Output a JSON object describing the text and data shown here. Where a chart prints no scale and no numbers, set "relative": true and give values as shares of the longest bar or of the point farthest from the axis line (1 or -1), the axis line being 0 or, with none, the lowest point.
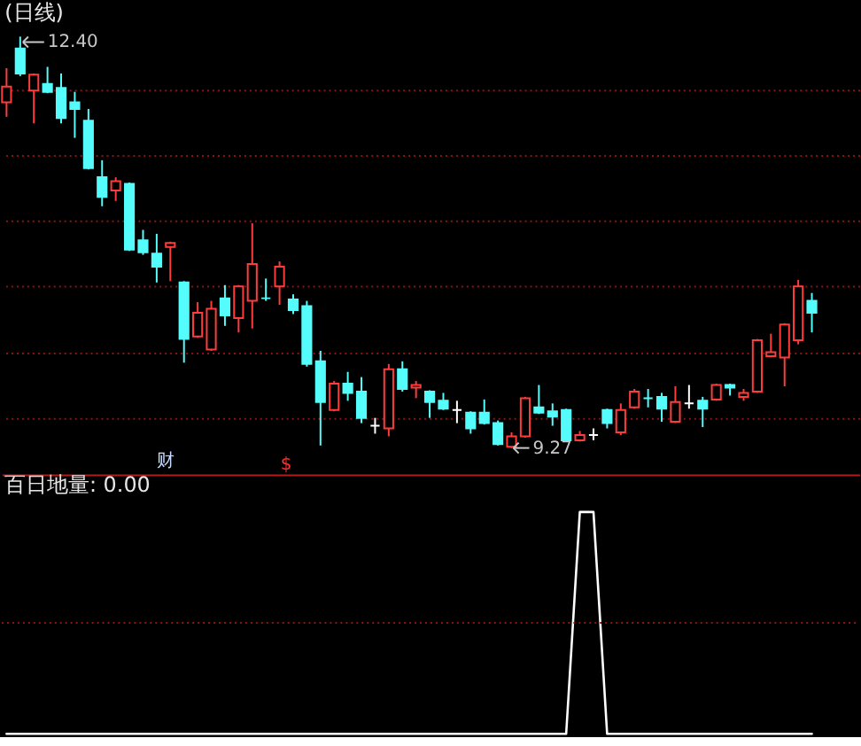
{
  "chart_data": [
    {
      "type": "candlestick",
      "title": "(日线)",
      "categories": [
        null,
        null,
        null,
        null,
        null,
        null,
        null,
        null,
        null,
        null,
        null,
        null,
        null,
        null,
        null,
        null,
        null,
        null,
        null,
        null,
        null,
        null,
        null,
        null,
        null,
        null,
        null,
        null,
        null,
        null,
        null,
        null,
        null,
        null,
        null,
        null,
        null,
        null,
        null,
        null,
        null,
        null,
        null,
        null,
        null,
        null,
        null,
        null,
        null,
        null,
        null,
        null,
        null,
        null,
        null,
        null,
        null,
        null,
        null,
        null
      ],
      "ohlc": [
        [
          11.9,
          12.16,
          11.79,
          12.02
        ],
        [
          12.31,
          12.4,
          12.1,
          12.12
        ],
        [
          11.99,
          12.12,
          11.74,
          12.11
        ],
        [
          12.04,
          12.17,
          11.97,
          11.98
        ],
        [
          12.01,
          12.12,
          11.74,
          11.78
        ],
        [
          11.9,
          11.98,
          11.63,
          11.85
        ],
        [
          11.76,
          11.85,
          11.39,
          11.4
        ],
        [
          11.33,
          11.46,
          11.11,
          11.18
        ],
        [
          11.23,
          11.33,
          11.15,
          11.3
        ],
        [
          11.28,
          11.29,
          10.77,
          10.78
        ],
        [
          10.85,
          10.93,
          10.74,
          10.76
        ],
        [
          10.75,
          10.9,
          10.53,
          10.65
        ],
        [
          10.8,
          10.84,
          10.54,
          10.83
        ],
        [
          10.53,
          10.54,
          9.92,
          10.1
        ],
        [
          10.12,
          10.38,
          10.11,
          10.3
        ],
        [
          10.02,
          10.39,
          10.01,
          10.33
        ],
        [
          10.41,
          10.51,
          10.2,
          10.28
        ],
        [
          10.26,
          10.51,
          10.15,
          10.5
        ],
        [
          10.39,
          10.98,
          10.18,
          10.67
        ],
        [
          10.41,
          10.56,
          10.39,
          10.41
        ],
        [
          10.5,
          10.69,
          10.36,
          10.65
        ],
        [
          10.4,
          10.44,
          10.29,
          10.32
        ],
        [
          10.35,
          10.39,
          9.89,
          9.91
        ],
        [
          9.93,
          10.01,
          9.29,
          9.62
        ],
        [
          9.56,
          9.78,
          9.55,
          9.76
        ],
        [
          9.76,
          9.85,
          9.63,
          9.69
        ],
        [
          9.7,
          9.81,
          9.46,
          9.5
        ],
        [
          9.44,
          9.5,
          9.38,
          9.44
        ],
        [
          9.42,
          9.91,
          9.36,
          9.87
        ],
        [
          9.87,
          9.93,
          9.7,
          9.72
        ],
        [
          9.73,
          9.78,
          9.65,
          9.75
        ],
        [
          9.7,
          9.71,
          9.5,
          9.62
        ],
        [
          9.63,
          9.69,
          9.56,
          9.57
        ],
        [
          9.56,
          9.63,
          9.46,
          9.56
        ],
        [
          9.54,
          9.55,
          9.38,
          9.42
        ],
        [
          9.54,
          9.64,
          9.45,
          9.46
        ],
        [
          9.46,
          9.48,
          9.29,
          9.3
        ],
        [
          9.28,
          9.39,
          9.27,
          9.36
        ],
        [
          9.36,
          9.66,
          9.35,
          9.65
        ],
        [
          9.58,
          9.75,
          9.53,
          9.54
        ],
        [
          9.55,
          9.61,
          9.44,
          9.51
        ],
        [
          9.56,
          9.57,
          9.32,
          9.33
        ],
        [
          9.33,
          9.4,
          9.32,
          9.37
        ],
        [
          9.37,
          9.42,
          9.33,
          9.37
        ],
        [
          9.56,
          9.57,
          9.42,
          9.46
        ],
        [
          9.39,
          9.61,
          9.37,
          9.56
        ],
        [
          9.58,
          9.72,
          9.57,
          9.7
        ],
        [
          9.65,
          9.72,
          9.58,
          9.65
        ],
        [
          9.66,
          9.69,
          9.47,
          9.57
        ],
        [
          9.47,
          9.74,
          9.46,
          9.62
        ],
        [
          9.61,
          9.75,
          9.57,
          9.61
        ],
        [
          9.63,
          9.66,
          9.43,
          9.57
        ],
        [
          9.64,
          9.76,
          9.63,
          9.75
        ],
        [
          9.75,
          9.76,
          9.67,
          9.73
        ],
        [
          9.66,
          9.72,
          9.63,
          9.69
        ],
        [
          9.7,
          10.1,
          9.69,
          10.09
        ],
        [
          9.97,
          10.14,
          9.96,
          10.0
        ],
        [
          9.96,
          10.22,
          9.74,
          10.21
        ],
        [
          10.09,
          10.55,
          10.06,
          10.5
        ],
        [
          10.39,
          10.45,
          10.15,
          10.3
        ]
      ],
      "colors": [
        "#ff3c3c",
        "#54fcfc",
        "#ff3c3c",
        "#54fcfc",
        "#54fcfc",
        "#54fcfc",
        "#54fcfc",
        "#54fcfc",
        "#ff3c3c",
        "#54fcfc",
        "#54fcfc",
        "#54fcfc",
        "#ff3c3c",
        "#54fcfc",
        "#ff3c3c",
        "#ff3c3c",
        "#54fcfc",
        "#ff3c3c",
        "#ff3c3c",
        "#54fcfc",
        "#ff3c3c",
        "#54fcfc",
        "#54fcfc",
        "#54fcfc",
        "#ff3c3c",
        "#54fcfc",
        "#54fcfc",
        "#ffffff",
        "#ff3c3c",
        "#54fcfc",
        "#ff3c3c",
        "#54fcfc",
        "#54fcfc",
        "#ffffff",
        "#54fcfc",
        "#54fcfc",
        "#54fcfc",
        "#ff3c3c",
        "#ff3c3c",
        "#54fcfc",
        "#54fcfc",
        "#54fcfc",
        "#ff3c3c",
        "#ffffff",
        "#54fcfc",
        "#ff3c3c",
        "#ff3c3c",
        "#54fcfc",
        "#54fcfc",
        "#ff3c3c",
        "#ffffff",
        "#54fcfc",
        "#ff3c3c",
        "#54fcfc",
        "#ff3c3c",
        "#ff3c3c",
        "#ff3c3c",
        "#ff3c3c",
        "#ff3c3c",
        "#54fcfc"
      ],
      "yticks": [
        {
          "value": 12.0,
          "label": null
        },
        {
          "value": 11.5,
          "label": null
        },
        {
          "value": 11.0,
          "label": null
        },
        {
          "value": 10.5,
          "label": null
        },
        {
          "value": 10.0,
          "label": null
        },
        {
          "value": 9.5,
          "label": null
        }
      ],
      "grid": "y",
      "tick_labels": false,
      "annotations": [
        "12.40",
        "9.27",
        "财",
        "$"
      ]
    },
    {
      "type": "line",
      "title": "百日地量: 0.00",
      "relative": true,
      "categories": [
        null,
        null,
        null,
        null,
        null,
        null,
        null,
        null,
        null,
        null,
        null,
        null,
        null,
        null,
        null,
        null,
        null,
        null,
        null,
        null,
        null,
        null,
        null,
        null,
        null,
        null,
        null,
        null,
        null,
        null,
        null,
        null,
        null,
        null,
        null,
        null,
        null,
        null,
        null,
        null,
        null,
        null,
        null,
        null,
        null,
        null,
        null,
        null,
        null,
        null,
        null,
        null,
        null,
        null,
        null,
        null,
        null,
        null,
        null,
        null
      ],
      "series": [
        {
          "color": "#ffffff",
          "values": [
            0,
            0,
            0,
            0,
            0,
            0,
            0,
            0,
            0,
            0,
            0,
            0,
            0,
            0,
            0,
            0,
            0,
            0,
            0,
            0,
            0,
            0,
            0,
            0,
            0,
            0,
            0,
            0,
            0,
            0,
            0,
            0,
            0,
            0,
            0,
            0,
            0,
            0,
            0,
            0,
            0,
            0,
            1,
            1,
            0,
            0,
            0,
            0,
            0,
            0,
            0,
            0,
            0,
            0,
            0,
            0,
            0,
            0,
            0,
            0
          ]
        }
      ],
      "ref_lines": [
        {
          "axis": "y",
          "value": 0.5,
          "color": "#8c1414",
          "line_style": "dotted"
        }
      ]
    }
  ]
}
